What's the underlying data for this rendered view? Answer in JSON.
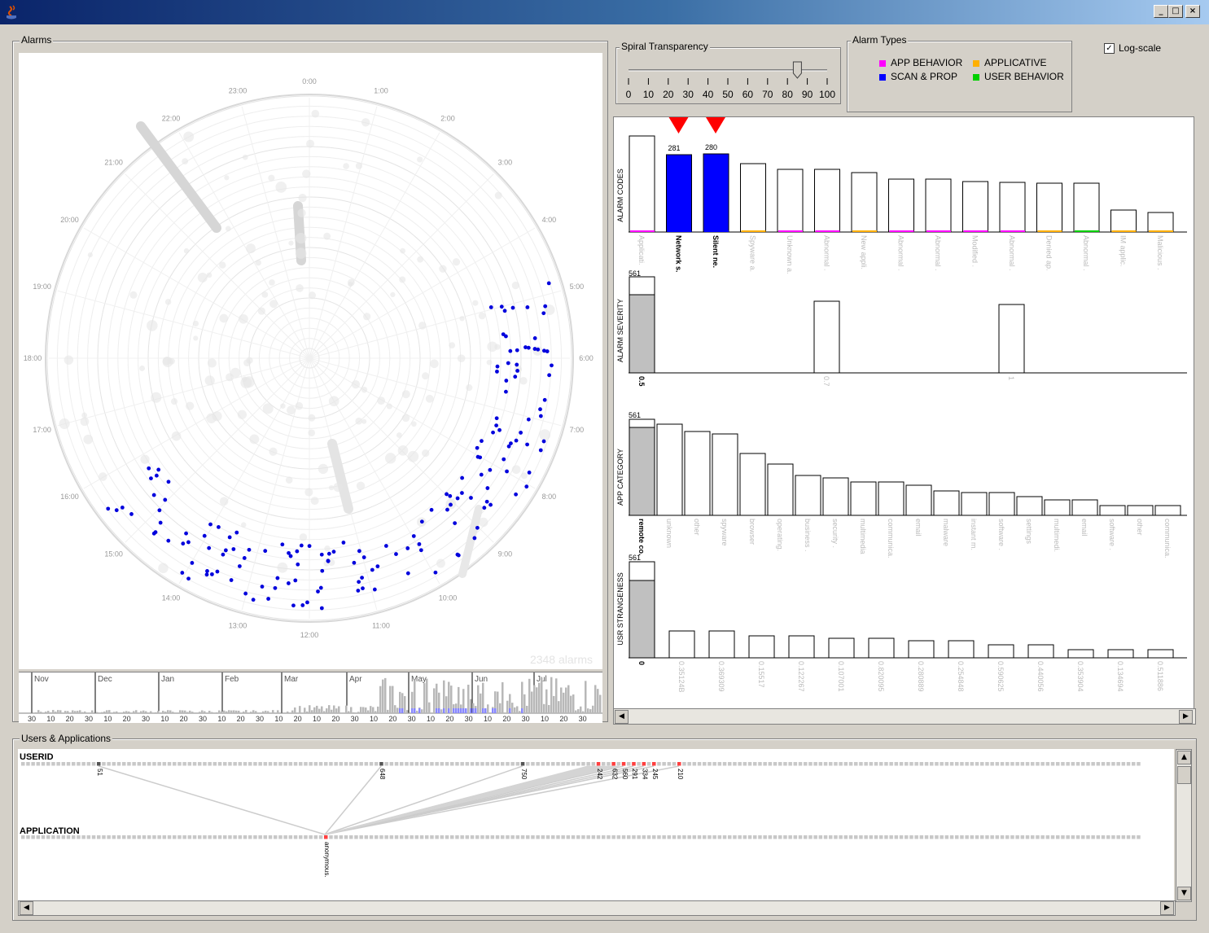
{
  "window": {
    "min_glyph": "_",
    "max_glyph": "□",
    "close_glyph": "×"
  },
  "alarms_panel": {
    "title": "Alarms",
    "hours": [
      "0:00",
      "1:00",
      "2:00",
      "3:00",
      "4:00",
      "5:00",
      "6:00",
      "7:00",
      "8:00",
      "9:00",
      "10:00",
      "11:00",
      "12:00",
      "13:00",
      "14:00",
      "15:00",
      "16:00",
      "17:00",
      "18:00",
      "19:00",
      "20:00",
      "21:00",
      "22:00",
      "23:00"
    ],
    "alarm_count": "2348 alarms",
    "timeline_months": [
      "Nov",
      "Dec",
      "Jan",
      "Feb",
      "Mar",
      "Apr",
      "May",
      "Jun",
      "Jul"
    ],
    "timeline_days": [
      "30",
      "10",
      "20",
      "30",
      "10",
      "20",
      "30",
      "10",
      "20",
      "30",
      "10",
      "20",
      "30",
      "10",
      "20",
      "10",
      "20",
      "30",
      "10",
      "20",
      "30",
      "10",
      "20",
      "30",
      "10",
      "20",
      "30",
      "10",
      "20",
      "30"
    ]
  },
  "transparency": {
    "title": "Spiral Transparency",
    "ticks": [
      "0",
      "10",
      "20",
      "30",
      "40",
      "50",
      "60",
      "70",
      "80",
      "90",
      "100"
    ],
    "value": 85
  },
  "alarm_types": {
    "title": "Alarm Types",
    "items": [
      {
        "label": "APP BEHAVIOR",
        "color": "#ff00ff"
      },
      {
        "label": "APPLICATIVE",
        "color": "#ffb000"
      },
      {
        "label": "SCAN & PROP",
        "color": "#0000ff"
      },
      {
        "label": "USER BEHAVIOR",
        "color": "#00d000"
      }
    ]
  },
  "log_scale": {
    "label": "Log-scale",
    "checked": true
  },
  "histograms": {
    "alarm_codes": {
      "axis_label": "ALARM CODES",
      "selected_counts": [
        "281",
        "280"
      ],
      "categories": [
        "Applicati.",
        "Network s.",
        "Silent ne.",
        "Spyware a.",
        "Unknown a.",
        "Abnormal .",
        "New appli.",
        "Abnormal .",
        "Abnormal .",
        "Modified .",
        "Abnormal .",
        "Denied ap.",
        "Abnormal .",
        "IM applic.",
        "Malicious ."
      ],
      "heights": [
        118,
        95,
        96,
        84,
        77,
        77,
        73,
        65,
        65,
        62,
        61,
        60,
        60,
        27,
        24
      ],
      "selected": [
        false,
        true,
        true,
        false,
        false,
        false,
        false,
        false,
        false,
        false,
        false,
        false,
        false,
        false,
        false
      ],
      "type_colors": [
        "#ff00ff",
        "#0000ff",
        "#0000ff",
        "#ffb000",
        "#ff00ff",
        "#ff00ff",
        "#ffb000",
        "#ff00ff",
        "#ff00ff",
        "#ff00ff",
        "#ff00ff",
        "#ffb000",
        "#00d000",
        "#ffb000",
        "#ffb000"
      ]
    },
    "alarm_severity": {
      "axis_label": "ALARM SEVERITY",
      "top_count": "561",
      "categories": [
        "0.5",
        "0.7",
        "1"
      ]
    },
    "app_category": {
      "axis_label": "APP CATEGORY",
      "top_count": "561",
      "categories": [
        "remote co.",
        "unknown",
        "other",
        "spyware",
        "browser",
        "operating.",
        "business .",
        "security .",
        "multimedia",
        "communica.",
        "email",
        "malware",
        "instant m.",
        "software .",
        "settings",
        "multimedi.",
        "email",
        "software .",
        "other",
        "communica."
      ],
      "heights": [
        118,
        112,
        103,
        100,
        76,
        63,
        49,
        46,
        41,
        41,
        37,
        30,
        28,
        28,
        23,
        19,
        19,
        12,
        12,
        12
      ]
    },
    "usr_strangeness": {
      "axis_label": "USR STRANGENESS",
      "top_count": "561",
      "categories": [
        "0",
        "0.35124B",
        "0.369309",
        "0.15517",
        "0.122267",
        "0.107001",
        "0.820095",
        "0.280889",
        "0.254848",
        "0.590625",
        "0.440056",
        "0.353904",
        "0.134694",
        "0.511886"
      ],
      "heights": [
        118,
        33,
        33,
        27,
        27,
        24,
        24,
        21,
        21,
        16,
        16,
        10,
        10,
        10
      ]
    }
  },
  "users_apps": {
    "title": "Users & Applications",
    "userid_label": "USERID",
    "application_label": "APPLICATION",
    "highlighted_users": [
      "51",
      "648",
      "750",
      "242",
      "632",
      "560",
      "291",
      "334",
      "245",
      "210"
    ],
    "highlighted_app": "anonymous."
  }
}
